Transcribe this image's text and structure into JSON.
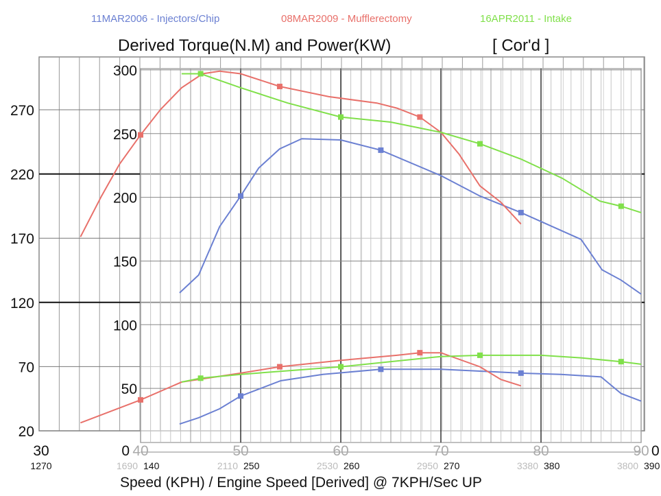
{
  "chart_data": {
    "type": "line",
    "title": "Derived Torque(N.M) and Power(KW)",
    "title_suffix": "[ Cor'd ]",
    "xlabel": "Speed (KPH) / Engine Speed [Derived] @ 7KPH/Sec UP",
    "legend_placement": "top",
    "grid": true,
    "xlim": [
      40,
      90
    ],
    "ylim": [
      0,
      300
    ],
    "back_xlim": [
      30,
      90
    ],
    "y_ticks": [
      300,
      250,
      200,
      150,
      100,
      50
    ],
    "back_y_ticks": [
      270,
      220,
      170,
      120,
      70,
      20
    ],
    "x_ticks": [
      40,
      50,
      60,
      70,
      80,
      90
    ],
    "back_x_tick_labels": [
      "30",
      "0",
      "0"
    ],
    "rpm_tick_labels": [
      "1270",
      "1690",
      "2110",
      "2530",
      "2950",
      "3380",
      "3800"
    ],
    "overlay_x_tick_labels": [
      "140",
      "250",
      "260",
      "270",
      "380",
      "390"
    ],
    "series": [
      {
        "name": "11MAR2006 - Injectors/Chip",
        "color": "#6b80d2",
        "torque": [
          [
            43.9,
            125
          ],
          [
            45.8,
            139
          ],
          [
            47.9,
            177
          ],
          [
            50,
            201
          ],
          [
            51.8,
            223
          ],
          [
            53.9,
            238
          ],
          [
            56.1,
            246
          ],
          [
            60,
            245
          ],
          [
            64,
            237
          ],
          [
            70,
            217
          ],
          [
            73.9,
            201
          ],
          [
            78,
            188
          ],
          [
            84,
            167
          ],
          [
            86.1,
            143
          ],
          [
            88,
            135
          ],
          [
            90,
            124
          ]
        ],
        "power": [
          [
            43.9,
            22
          ],
          [
            45.8,
            27
          ],
          [
            47.9,
            34
          ],
          [
            50,
            44
          ],
          [
            54,
            56
          ],
          [
            58.2,
            61
          ],
          [
            64,
            65
          ],
          [
            70,
            65
          ],
          [
            78,
            62
          ],
          [
            82,
            61
          ],
          [
            86,
            59
          ],
          [
            88,
            46
          ],
          [
            90,
            40
          ]
        ],
        "markers_x": [
          50,
          64,
          78
        ]
      },
      {
        "name": "08MAR2009 - Mufflerectomy",
        "color": "#e8706a",
        "torque": [
          [
            34,
            169
          ],
          [
            36.1,
            201
          ],
          [
            37.9,
            226
          ],
          [
            40,
            249
          ],
          [
            42,
            269
          ],
          [
            44.1,
            286
          ],
          [
            46.2,
            297
          ],
          [
            47.9,
            299
          ],
          [
            50,
            297
          ],
          [
            53.9,
            287
          ],
          [
            58.8,
            279
          ],
          [
            63.6,
            274
          ],
          [
            65.6,
            270
          ],
          [
            67.9,
            263
          ],
          [
            70,
            251
          ],
          [
            71.8,
            234
          ],
          [
            73.9,
            209
          ],
          [
            76,
            196
          ],
          [
            78,
            179
          ]
        ],
        "power": [
          [
            34,
            23
          ],
          [
            40,
            41
          ],
          [
            44.1,
            55
          ],
          [
            50,
            62
          ],
          [
            53.9,
            67
          ],
          [
            60,
            72
          ],
          [
            65.6,
            76
          ],
          [
            67.9,
            78
          ],
          [
            70,
            78
          ],
          [
            73.9,
            67
          ],
          [
            76,
            57
          ],
          [
            78,
            52
          ]
        ],
        "markers_x": [
          40,
          53.9,
          67.9
        ]
      },
      {
        "name": "16APR2011 - Intake",
        "color": "#80e04a",
        "torque": [
          [
            44.1,
            297
          ],
          [
            46,
            297
          ],
          [
            50,
            286
          ],
          [
            54.7,
            274
          ],
          [
            60,
            263
          ],
          [
            65,
            259
          ],
          [
            70,
            251
          ],
          [
            73.9,
            242
          ],
          [
            78,
            230
          ],
          [
            82.1,
            215
          ],
          [
            85.9,
            197
          ],
          [
            88,
            193
          ],
          [
            90,
            188
          ]
        ],
        "power": [
          [
            44.1,
            55
          ],
          [
            46,
            58
          ],
          [
            50,
            61
          ],
          [
            60,
            67
          ],
          [
            70,
            75
          ],
          [
            73.9,
            76
          ],
          [
            80,
            76
          ],
          [
            84,
            74
          ],
          [
            88,
            71
          ],
          [
            90,
            69
          ]
        ],
        "markers_x": [
          46,
          60,
          73.9,
          88
        ]
      }
    ]
  }
}
